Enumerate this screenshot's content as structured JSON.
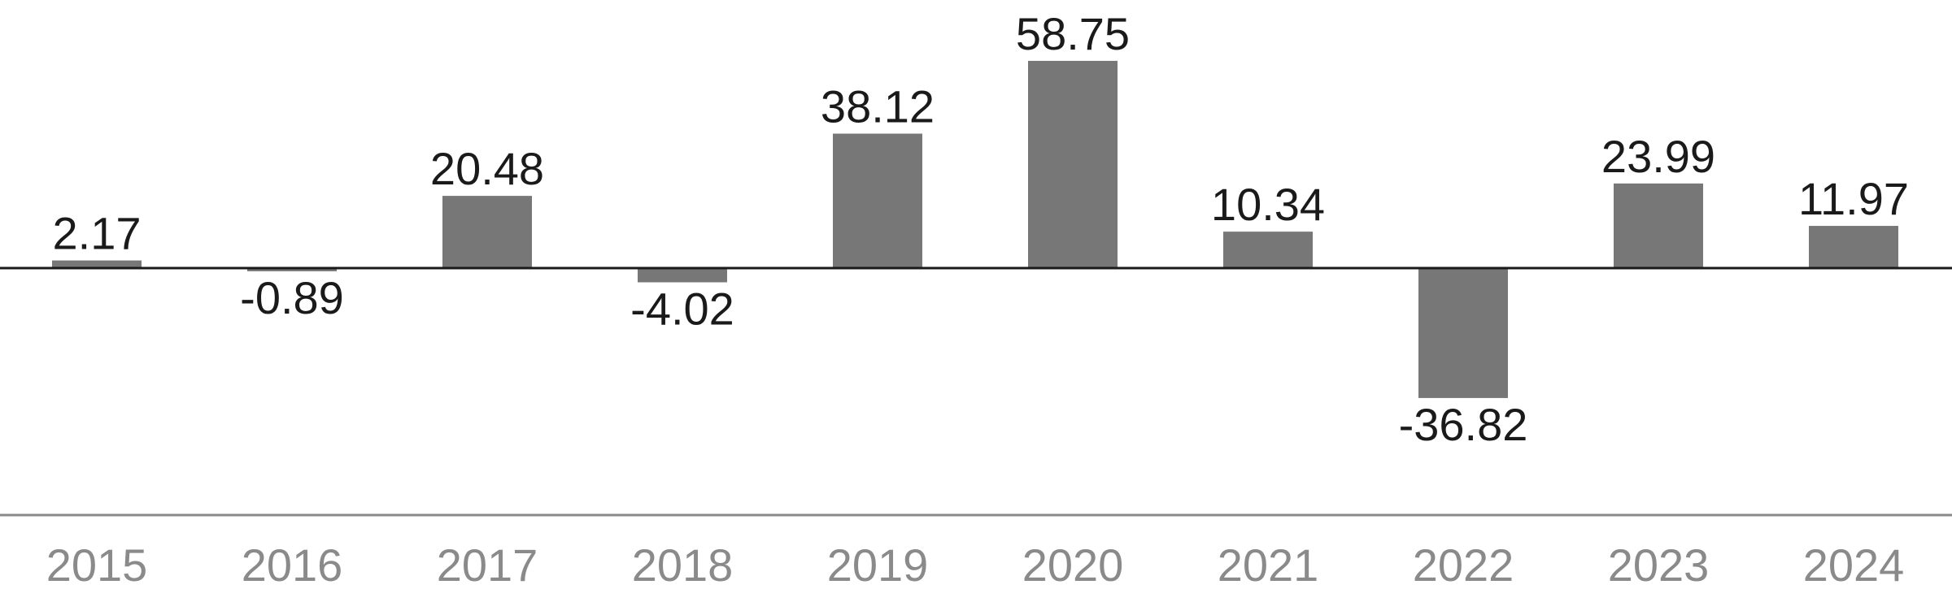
{
  "chart_data": {
    "type": "bar",
    "categories": [
      "2015",
      "2016",
      "2017",
      "2018",
      "2019",
      "2020",
      "2021",
      "2022",
      "2023",
      "2024"
    ],
    "values": [
      2.17,
      -0.89,
      20.48,
      -4.02,
      38.12,
      58.75,
      10.34,
      -36.82,
      23.99,
      11.97
    ],
    "color": "#777777",
    "ylim": [
      -70,
      76
    ]
  }
}
